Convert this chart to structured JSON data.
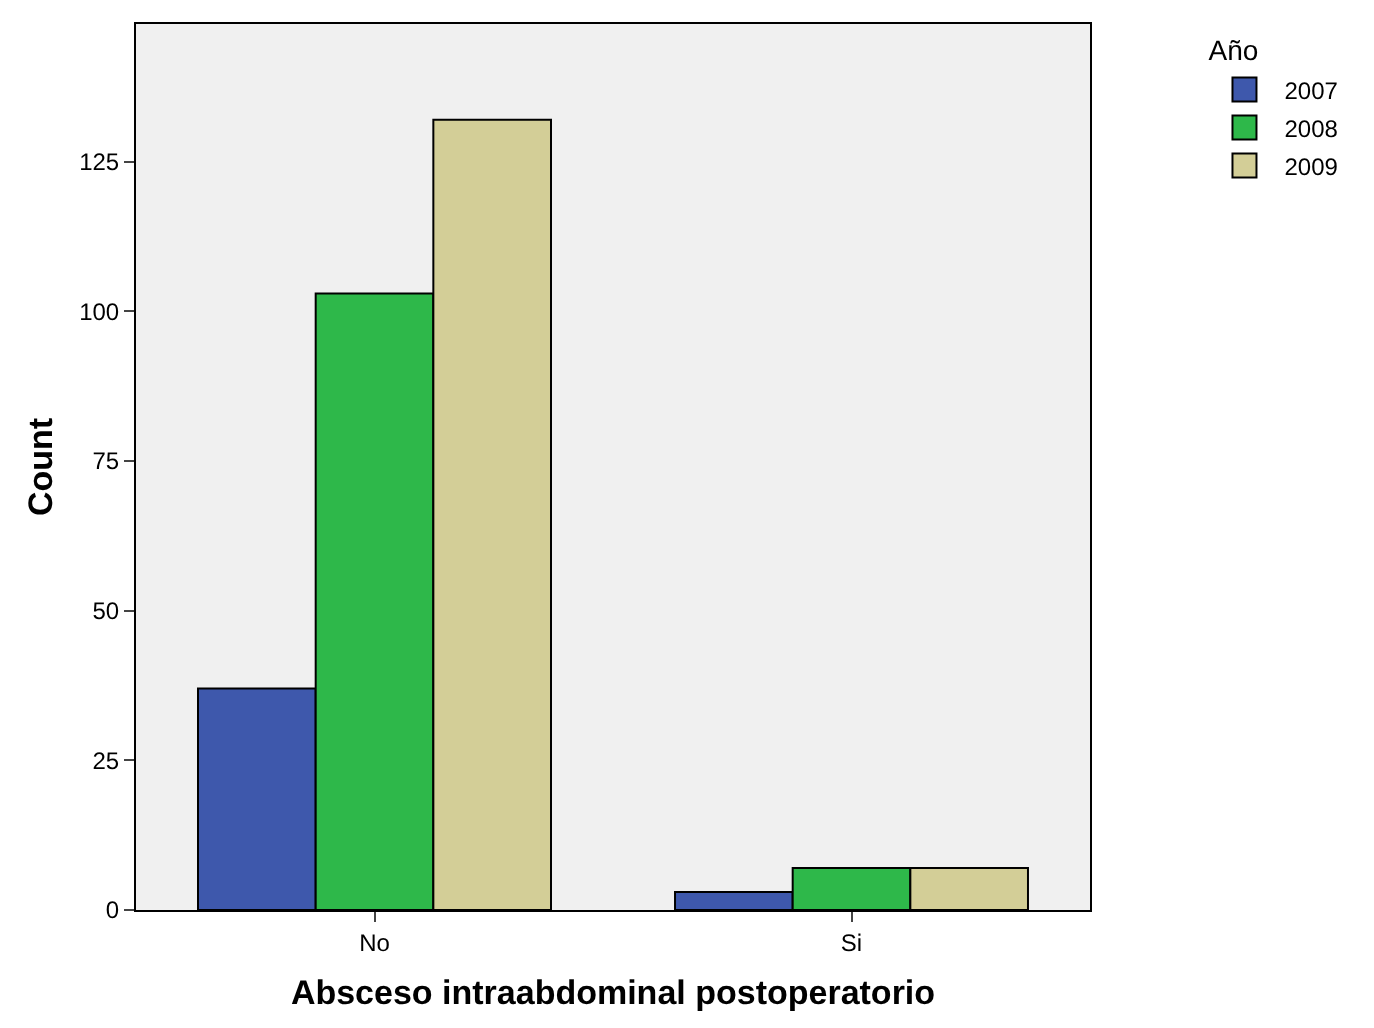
{
  "chart_data": {
    "type": "bar",
    "xlabel": "Absceso intraabdominal postoperatorio",
    "ylabel": "Count",
    "legend_title": "Año",
    "categories": [
      "No",
      "Si"
    ],
    "series": [
      {
        "name": "2007",
        "color": "#3e58ac",
        "values": [
          37,
          3
        ]
      },
      {
        "name": "2008",
        "color": "#2eb84a",
        "values": [
          103,
          7
        ]
      },
      {
        "name": "2009",
        "color": "#d3ce97",
        "values": [
          132,
          7
        ]
      }
    ],
    "ylim": [
      0,
      148
    ],
    "yticks": [
      0,
      25,
      50,
      75,
      100,
      125
    ],
    "grid": false,
    "legend": "top right"
  }
}
